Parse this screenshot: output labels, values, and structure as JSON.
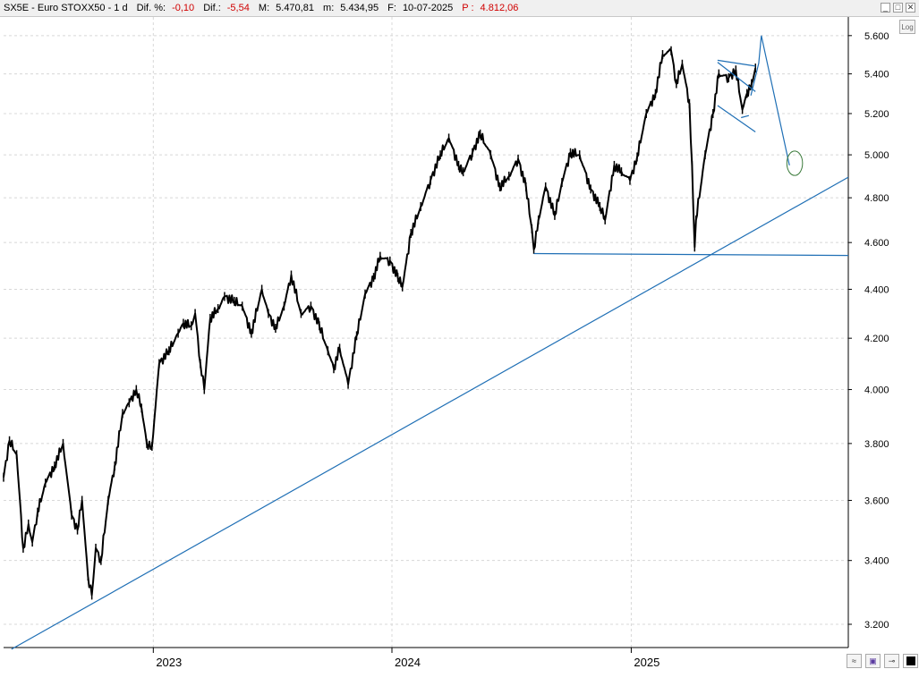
{
  "header": {
    "symbol": "SX5E - Euro STOXX50 - 1 d",
    "dif_pct_label": "Dif. %:",
    "dif_pct": "-0,10",
    "dif_label": "Dif.:",
    "dif": "-5,54",
    "m_label": "M:",
    "m": "5.470,81",
    "min_label": "m:",
    "min": "5.434,95",
    "f_label": "F:",
    "f": "10-07-2025",
    "p_label": "P :",
    "p": "4.812,06"
  },
  "window_buttons": [
    "_",
    "□",
    "✕"
  ],
  "log_button": "Log",
  "tools": [
    "chart-icon",
    "save-icon",
    "pin-icon",
    "color-icon"
  ],
  "colors": {
    "price": "#000000",
    "trendline": "#1f6fb5",
    "ellipse": "#3a7a3a",
    "negative": "#d00000"
  },
  "chart_data": {
    "type": "line",
    "title": "SX5E - Euro STOXX50",
    "y_scale": "log",
    "ylim": [
      3130,
      5700
    ],
    "y_ticks": [
      "5.600",
      "5.400",
      "5.200",
      "5.000",
      "4.800",
      "4.600",
      "4.400",
      "4.200",
      "4.000",
      "3.800",
      "3.600",
      "3.400",
      "3.200"
    ],
    "y_tick_values": [
      5600,
      5400,
      5200,
      5000,
      4800,
      4600,
      4400,
      4200,
      4000,
      3800,
      3600,
      3400,
      3200
    ],
    "x_ticks": [
      "2023",
      "2024",
      "2025"
    ],
    "x_tick_dates": [
      "2023-01-01",
      "2024-01-01",
      "2025-01-01"
    ],
    "xlim": [
      "2022-05-17",
      "2025-11-29"
    ],
    "grid": true,
    "series": [
      {
        "values": [
          [
            "2022-05-17",
            3680
          ],
          [
            "2022-05-26",
            3810
          ],
          [
            "2022-06-06",
            3760
          ],
          [
            "2022-06-16",
            3440
          ],
          [
            "2022-06-24",
            3520
          ],
          [
            "2022-06-30",
            3460
          ],
          [
            "2022-07-08",
            3560
          ],
          [
            "2022-07-20",
            3660
          ],
          [
            "2022-08-03",
            3720
          ],
          [
            "2022-08-16",
            3800
          ],
          [
            "2022-08-29",
            3550
          ],
          [
            "2022-09-07",
            3500
          ],
          [
            "2022-09-14",
            3600
          ],
          [
            "2022-09-23",
            3350
          ],
          [
            "2022-09-29",
            3290
          ],
          [
            "2022-10-05",
            3440
          ],
          [
            "2022-10-13",
            3400
          ],
          [
            "2022-10-24",
            3600
          ],
          [
            "2022-11-03",
            3720
          ],
          [
            "2022-11-15",
            3910
          ],
          [
            "2022-11-25",
            3950
          ],
          [
            "2022-12-06",
            4000
          ],
          [
            "2022-12-14",
            3930
          ],
          [
            "2022-12-22",
            3800
          ],
          [
            "2022-12-30",
            3790
          ],
          [
            "2023-01-10",
            4100
          ],
          [
            "2023-01-25",
            4150
          ],
          [
            "2023-02-08",
            4220
          ],
          [
            "2023-02-16",
            4260
          ],
          [
            "2023-02-28",
            4250
          ],
          [
            "2023-03-06",
            4300
          ],
          [
            "2023-03-14",
            4100
          ],
          [
            "2023-03-20",
            4000
          ],
          [
            "2023-03-29",
            4280
          ],
          [
            "2023-04-10",
            4320
          ],
          [
            "2023-04-20",
            4370
          ],
          [
            "2023-05-05",
            4350
          ],
          [
            "2023-05-17",
            4330
          ],
          [
            "2023-05-31",
            4220
          ],
          [
            "2023-06-16",
            4400
          ],
          [
            "2023-06-26",
            4300
          ],
          [
            "2023-07-07",
            4240
          ],
          [
            "2023-07-20",
            4330
          ],
          [
            "2023-07-31",
            4460
          ],
          [
            "2023-08-15",
            4300
          ],
          [
            "2023-08-30",
            4330
          ],
          [
            "2023-09-12",
            4250
          ],
          [
            "2023-09-25",
            4150
          ],
          [
            "2023-10-04",
            4080
          ],
          [
            "2023-10-13",
            4160
          ],
          [
            "2023-10-26",
            4020
          ],
          [
            "2023-11-08",
            4210
          ],
          [
            "2023-11-21",
            4380
          ],
          [
            "2023-12-04",
            4450
          ],
          [
            "2023-12-14",
            4540
          ],
          [
            "2023-12-29",
            4520
          ],
          [
            "2024-01-10",
            4450
          ],
          [
            "2024-01-17",
            4410
          ],
          [
            "2024-01-30",
            4640
          ],
          [
            "2024-02-14",
            4760
          ],
          [
            "2024-02-29",
            4880
          ],
          [
            "2024-03-15",
            5000
          ],
          [
            "2024-03-28",
            5080
          ],
          [
            "2024-04-12",
            4950
          ],
          [
            "2024-04-19",
            4920
          ],
          [
            "2024-05-03",
            5010
          ],
          [
            "2024-05-15",
            5100
          ],
          [
            "2024-05-31",
            5000
          ],
          [
            "2024-06-14",
            4850
          ],
          [
            "2024-06-28",
            4900
          ],
          [
            "2024-07-12",
            4980
          ],
          [
            "2024-07-24",
            4850
          ],
          [
            "2024-08-02",
            4660
          ],
          [
            "2024-08-05",
            4570
          ],
          [
            "2024-08-12",
            4700
          ],
          [
            "2024-08-23",
            4850
          ],
          [
            "2024-09-06",
            4720
          ],
          [
            "2024-09-17",
            4870
          ],
          [
            "2024-09-30",
            5010
          ],
          [
            "2024-10-14",
            5000
          ],
          [
            "2024-10-31",
            4840
          ],
          [
            "2024-11-14",
            4760
          ],
          [
            "2024-11-22",
            4700
          ],
          [
            "2024-12-06",
            4950
          ],
          [
            "2024-12-17",
            4920
          ],
          [
            "2024-12-30",
            4880
          ],
          [
            "2025-01-10",
            4990
          ],
          [
            "2025-01-24",
            5200
          ],
          [
            "2025-02-07",
            5300
          ],
          [
            "2025-02-18",
            5500
          ],
          [
            "2025-03-03",
            5520
          ],
          [
            "2025-03-11",
            5350
          ],
          [
            "2025-03-20",
            5450
          ],
          [
            "2025-03-31",
            5250
          ],
          [
            "2025-04-04",
            4950
          ],
          [
            "2025-04-08",
            4580
          ],
          [
            "2025-04-10",
            4700
          ],
          [
            "2025-04-24",
            5000
          ],
          [
            "2025-05-06",
            5200
          ],
          [
            "2025-05-15",
            5400
          ],
          [
            "2025-05-30",
            5380
          ],
          [
            "2025-06-10",
            5420
          ],
          [
            "2025-06-20",
            5220
          ],
          [
            "2025-06-27",
            5300
          ],
          [
            "2025-07-04",
            5350
          ],
          [
            "2025-07-10",
            5430
          ]
        ]
      }
    ],
    "drawings": {
      "long_trendline": {
        "points": [
          [
            "2022-05-29",
            3125
          ],
          [
            "2025-11-29",
            4895
          ]
        ]
      },
      "support_line": {
        "points": [
          [
            "2024-08-05",
            4552
          ],
          [
            "2025-11-29",
            4544
          ]
        ]
      },
      "triangle_upper": {
        "points": [
          [
            "2025-05-13",
            5460
          ],
          [
            "2025-07-10",
            5310
          ]
        ]
      },
      "triangle_lower": {
        "points": [
          [
            "2025-05-13",
            5240
          ],
          [
            "2025-07-10",
            5110
          ]
        ]
      },
      "wedge_upper": {
        "points": [
          [
            "2025-05-13",
            5470
          ],
          [
            "2025-07-10",
            5440
          ]
        ]
      },
      "wedge_lower": {
        "points": [
          [
            "2025-06-18",
            5180
          ],
          [
            "2025-06-30",
            5190
          ]
        ]
      },
      "projection": {
        "points": [
          [
            "2025-07-03",
            5290
          ],
          [
            "2025-07-15",
            5455
          ],
          [
            "2025-07-19",
            5600
          ],
          [
            "2025-08-31",
            4950
          ]
        ]
      },
      "target_ellipse": {
        "center": [
          "2025-09-08",
          4960
        ],
        "radius_days": 12,
        "radius_y_over": 5020,
        "radius_y_under": 4905
      }
    }
  }
}
